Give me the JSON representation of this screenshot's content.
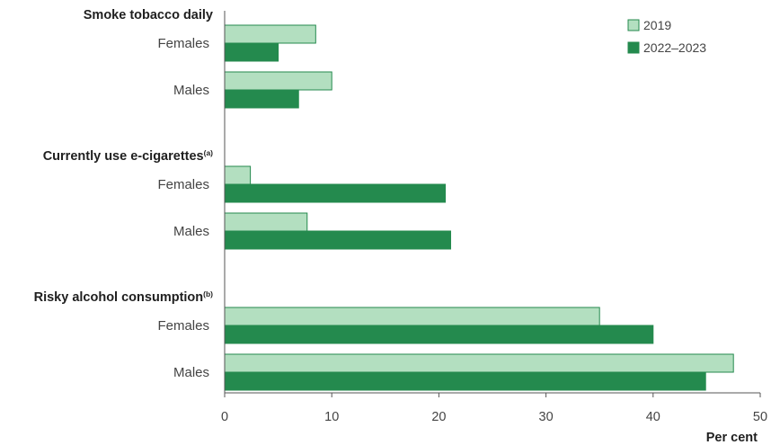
{
  "chart_data": {
    "type": "bar",
    "orientation": "horizontal",
    "groups": [
      {
        "title": "Smoke tobacco daily",
        "note": "",
        "categories": [
          {
            "label": "Females",
            "values": {
              "2019": 8.5,
              "2022–2023": 5.0
            }
          },
          {
            "label": "Males",
            "values": {
              "2019": 10.0,
              "2022–2023": 6.9
            }
          }
        ]
      },
      {
        "title": "Currently use e-cigarettes",
        "note": "(a)",
        "categories": [
          {
            "label": "Females",
            "values": {
              "2019": 2.4,
              "2022–2023": 20.6
            }
          },
          {
            "label": "Males",
            "values": {
              "2019": 7.7,
              "2022–2023": 21.1
            }
          }
        ]
      },
      {
        "title": "Risky alcohol consumption",
        "note": "(b)",
        "categories": [
          {
            "label": "Females",
            "values": {
              "2019": 35.0,
              "2022–2023": 40.0
            }
          },
          {
            "label": "Males",
            "values": {
              "2019": 47.5,
              "2022–2023": 44.9
            }
          }
        ]
      }
    ],
    "series": [
      {
        "name": "2019",
        "color": "#b3dfc0"
      },
      {
        "name": "2022–2023",
        "color": "#248a4e"
      }
    ],
    "xlabel": "Per cent",
    "xlim": [
      0,
      50
    ],
    "xticks": [
      0,
      10,
      20,
      30,
      40,
      50
    ],
    "grid": false,
    "legend_position": "top-right"
  }
}
